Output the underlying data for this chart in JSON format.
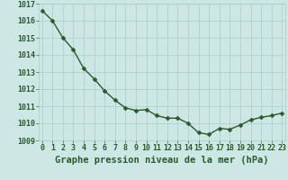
{
  "x": [
    0,
    1,
    2,
    3,
    4,
    5,
    6,
    7,
    8,
    9,
    10,
    11,
    12,
    13,
    14,
    15,
    16,
    17,
    18,
    19,
    20,
    21,
    22,
    23
  ],
  "y": [
    1016.6,
    1016.0,
    1015.0,
    1014.3,
    1013.2,
    1012.6,
    1011.9,
    1011.35,
    1010.9,
    1010.75,
    1010.8,
    1010.45,
    1010.3,
    1010.3,
    1010.0,
    1009.45,
    1009.35,
    1009.7,
    1009.65,
    1009.9,
    1010.2,
    1010.35,
    1010.45,
    1010.6
  ],
  "ylim": [
    1009,
    1017
  ],
  "xlim": [
    -0.3,
    23.3
  ],
  "yticks": [
    1009,
    1010,
    1011,
    1012,
    1013,
    1014,
    1015,
    1016,
    1017
  ],
  "xticks": [
    0,
    1,
    2,
    3,
    4,
    5,
    6,
    7,
    8,
    9,
    10,
    11,
    12,
    13,
    14,
    15,
    16,
    17,
    18,
    19,
    20,
    21,
    22,
    23
  ],
  "line_color": "#2d5a2d",
  "marker_color": "#2d5a2d",
  "bg_color": "#cde8e4",
  "grid_color": "#a8ccc8",
  "axis_label_color": "#2d5a2d",
  "xlabel": "Graphe pression niveau de la mer (hPa)",
  "tick_label_color": "#2d5a2d",
  "xlabel_fontsize": 7.5,
  "tick_fontsize": 6.0,
  "linewidth": 1.0,
  "markersize": 2.5
}
